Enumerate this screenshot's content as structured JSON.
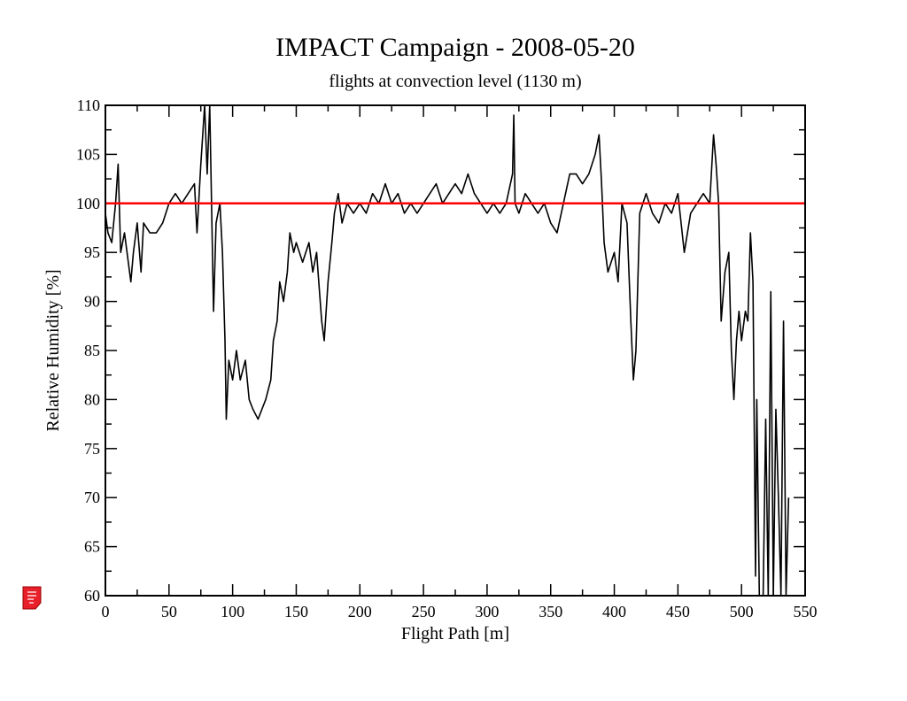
{
  "chart_data": {
    "type": "line",
    "title": "IMPACT Campaign - 2008-05-20",
    "subtitle": "flights at convection level (1130 m)",
    "x_label": "Flight Path [m]",
    "y_label": "Relative Humidity [%]",
    "xlim": [
      0,
      550
    ],
    "xticks": [
      0,
      50,
      100,
      150,
      200,
      250,
      300,
      350,
      400,
      450,
      500,
      550
    ],
    "ylim": [
      60,
      110
    ],
    "yticks": [
      60,
      65,
      70,
      75,
      80,
      85,
      90,
      95,
      100,
      105,
      110
    ],
    "reference_line": {
      "value": 100,
      "color": "#ff0000"
    },
    "x": [
      0,
      2,
      5,
      8,
      10,
      12,
      15,
      18,
      20,
      22,
      25,
      28,
      30,
      35,
      40,
      45,
      50,
      55,
      60,
      65,
      70,
      72,
      75,
      78,
      80,
      82,
      84,
      85,
      87,
      90,
      92,
      94,
      95,
      97,
      100,
      103,
      106,
      110,
      113,
      116,
      120,
      123,
      126,
      130,
      132,
      135,
      137,
      140,
      143,
      145,
      148,
      150,
      155,
      160,
      163,
      166,
      170,
      172,
      175,
      178,
      180,
      183,
      186,
      190,
      195,
      200,
      205,
      210,
      215,
      220,
      225,
      230,
      235,
      240,
      245,
      250,
      255,
      260,
      265,
      270,
      275,
      280,
      285,
      290,
      295,
      300,
      305,
      310,
      315,
      320,
      321,
      322,
      325,
      330,
      335,
      340,
      345,
      350,
      355,
      360,
      365,
      370,
      375,
      380,
      385,
      388,
      390,
      392,
      395,
      400,
      403,
      406,
      410,
      413,
      415,
      417,
      420,
      425,
      430,
      435,
      440,
      445,
      450,
      455,
      460,
      465,
      470,
      475,
      478,
      480,
      482,
      484,
      487,
      490,
      492,
      494,
      496,
      498,
      500,
      503,
      505,
      507,
      509,
      511,
      512,
      514,
      517,
      519,
      521,
      523,
      525,
      527,
      529,
      531,
      533,
      535,
      537
    ],
    "series": [
      {
        "name": "Relative Humidity",
        "color": "#000000",
        "values": [
          99,
          97,
          96,
          100,
          104,
          95,
          97,
          94,
          92,
          95,
          98,
          93,
          98,
          97,
          97,
          98,
          100,
          101,
          100,
          101,
          102,
          97,
          104,
          110,
          103,
          110,
          96,
          89,
          98,
          100,
          95,
          86,
          78,
          84,
          82,
          85,
          82,
          84,
          80,
          79,
          78,
          79,
          80,
          82,
          86,
          88,
          92,
          90,
          93,
          97,
          95,
          96,
          94,
          96,
          93,
          95,
          88,
          86,
          92,
          96,
          99,
          101,
          98,
          100,
          99,
          100,
          99,
          101,
          100,
          102,
          100,
          101,
          99,
          100,
          99,
          100,
          101,
          102,
          100,
          101,
          102,
          101,
          103,
          101,
          100,
          99,
          100,
          99,
          100,
          103,
          109,
          100,
          99,
          101,
          100,
          99,
          100,
          98,
          97,
          100,
          103,
          103,
          102,
          103,
          105,
          107,
          102,
          96,
          93,
          95,
          92,
          100,
          98,
          88,
          82,
          85,
          99,
          101,
          99,
          98,
          100,
          99,
          101,
          95,
          99,
          100,
          101,
          100,
          107,
          104,
          100,
          88,
          93,
          95,
          85,
          80,
          86,
          89,
          86,
          89,
          88,
          97,
          92,
          62,
          80,
          60,
          60,
          78,
          60,
          91,
          60,
          79,
          70,
          60,
          88,
          60,
          70
        ]
      }
    ]
  }
}
